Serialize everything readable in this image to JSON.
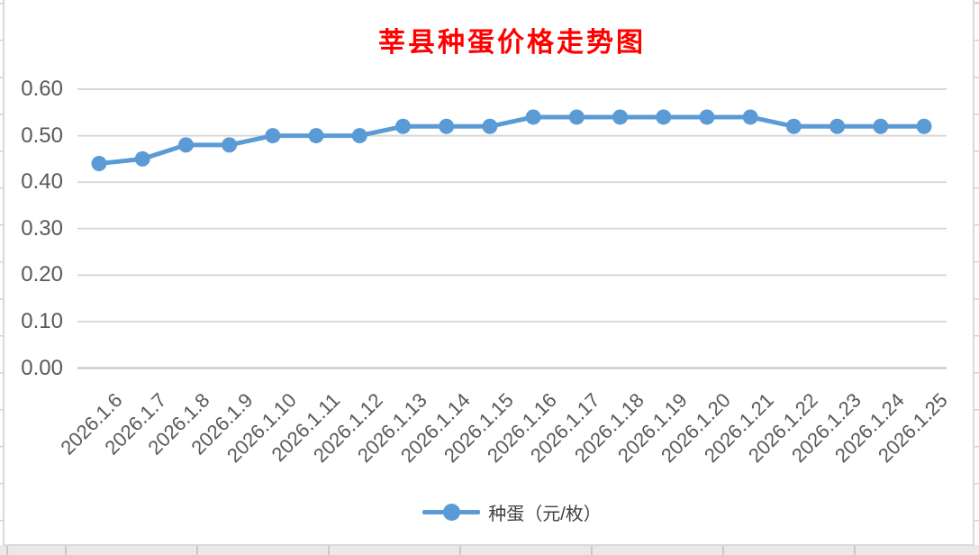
{
  "chart_data": {
    "type": "line",
    "title": "莘县种蛋价格走势图",
    "categories": [
      "2026.1.6",
      "2026.1.7",
      "2026.1.8",
      "2026.1.9",
      "2026.1.10",
      "2026.1.11",
      "2026.1.12",
      "2026.1.13",
      "2026.1.14",
      "2026.1.15",
      "2026.1.16",
      "2026.1.17",
      "2026.1.18",
      "2026.1.19",
      "2026.1.20",
      "2026.1.21",
      "2026.1.22",
      "2026.1.23",
      "2026.1.24",
      "2026.1.25"
    ],
    "series": [
      {
        "name": "种蛋（元/枚）",
        "values": [
          0.44,
          0.45,
          0.48,
          0.48,
          0.5,
          0.5,
          0.5,
          0.52,
          0.52,
          0.52,
          0.54,
          0.54,
          0.54,
          0.54,
          0.54,
          0.54,
          0.52,
          0.52,
          0.52,
          0.52
        ]
      }
    ],
    "xlabel": "",
    "ylabel": "",
    "ylim": [
      0.0,
      0.6
    ],
    "ytick_step": 0.1,
    "ytick_labels": [
      "0.00",
      "0.10",
      "0.20",
      "0.30",
      "0.40",
      "0.50",
      "0.60"
    ],
    "grid": true,
    "legend_position": "bottom",
    "colors": {
      "series_line": "#5B9BD5",
      "marker_fill": "#5B9BD5",
      "gridline": "#D9D9D9",
      "axis_line": "#BFBFBF",
      "tick_label": "#595959",
      "title": "#FF0000",
      "legend_text": "#404040",
      "chart_background": "#FFFFFF"
    }
  }
}
